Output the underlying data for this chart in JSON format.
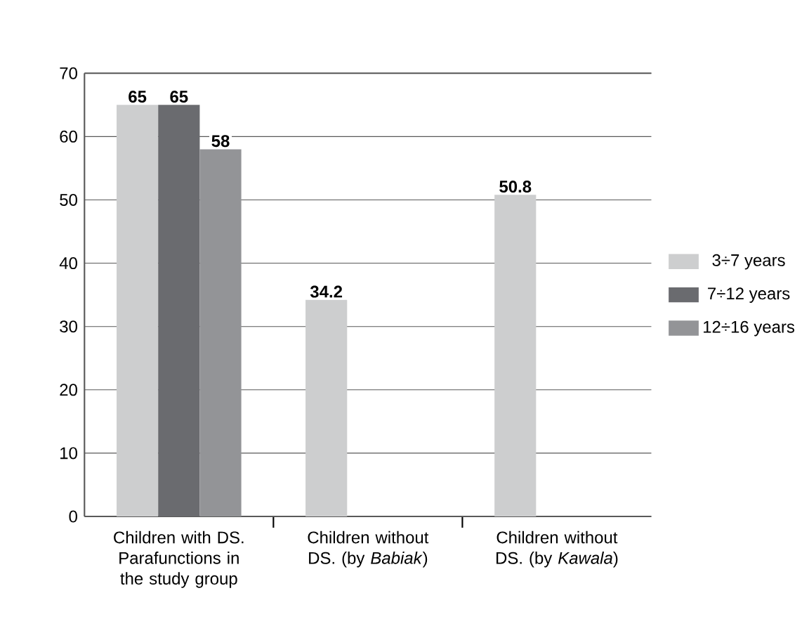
{
  "chart_data": {
    "type": "bar",
    "categories": [
      "Children with DS. Parafunctions in the study group",
      "Children without DS. (by *Babiak*)",
      "Children without DS. (by *Kawala*)"
    ],
    "series": [
      {
        "name": "3÷7 years",
        "color": "#cdcecf",
        "values": [
          65,
          34.2,
          50.8
        ]
      },
      {
        "name": "7÷12 years",
        "color": "#6a6b6f",
        "values": [
          65,
          null,
          null
        ]
      },
      {
        "name": "12÷16 years",
        "color": "#939497",
        "values": [
          58,
          null,
          null
        ]
      }
    ],
    "ylim": [
      0,
      70
    ],
    "yticks": [
      0,
      10,
      20,
      30,
      40,
      50,
      60,
      70
    ],
    "grid": "y",
    "legend": "right",
    "data_labels": true
  }
}
